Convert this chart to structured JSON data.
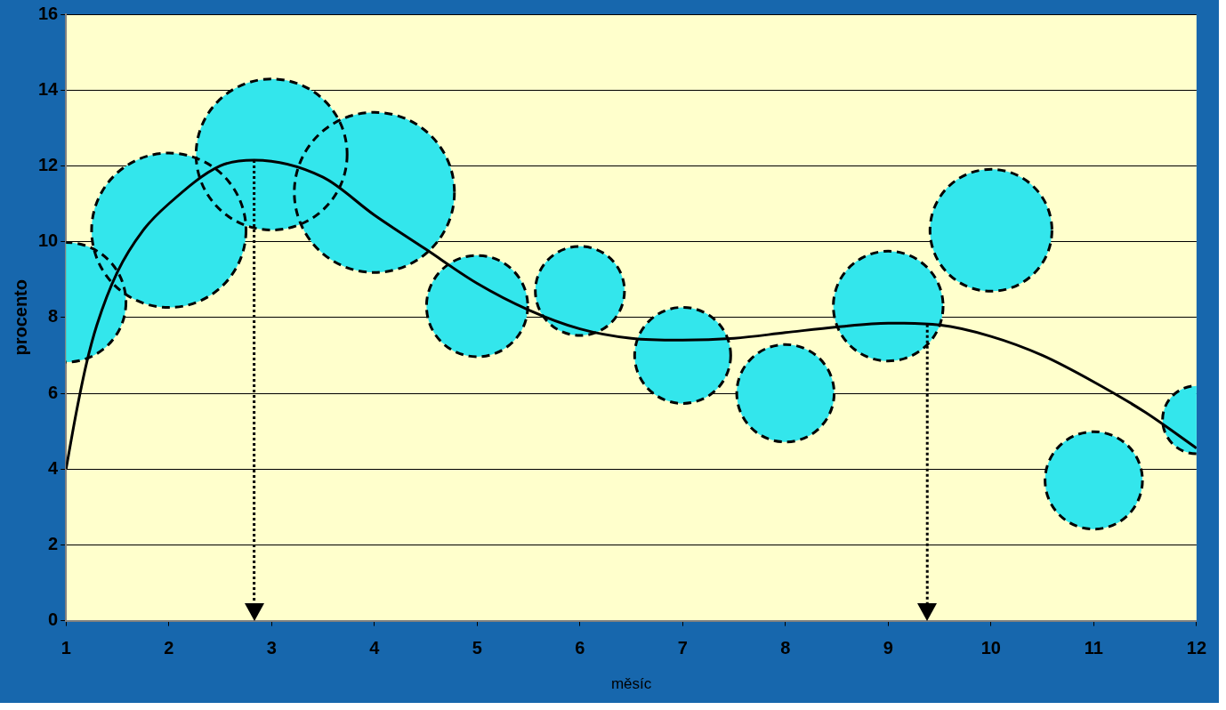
{
  "chart_data": {
    "type": "bubble",
    "xlabel": "měsíc",
    "ylabel": "procento",
    "x": [
      1,
      2,
      3,
      4,
      5,
      6,
      7,
      8,
      9,
      10,
      11,
      12
    ],
    "xlim": [
      1,
      12
    ],
    "xticks": [
      1,
      2,
      3,
      4,
      5,
      6,
      7,
      8,
      9,
      10,
      11,
      12
    ],
    "ylim": [
      0,
      16
    ],
    "yticks": [
      0,
      2,
      4,
      6,
      8,
      10,
      12,
      14,
      16
    ],
    "grid": "y",
    "legend": false,
    "line_style": "solid",
    "series": [
      {
        "color": "#33e6ec",
        "values": [
          8.4,
          10.3,
          12.3,
          11.3,
          8.3,
          8.7,
          7.0,
          6.0,
          8.3,
          10.3,
          3.7,
          5.3
        ],
        "sizes": [
          0.56,
          0.93,
          0.89,
          1,
          0.4,
          0.31,
          0.36,
          0.37,
          0.47,
          0.58,
          0.37,
          0.18
        ]
      },
      {
        "type": "line",
        "color": "#000000",
        "x": [
          1,
          1.1,
          1.2,
          1.3,
          1.5,
          1.75,
          2,
          2.5,
          2.83,
          3.5,
          4,
          4.5,
          5,
          5.5,
          6,
          6.5,
          7,
          7.5,
          8,
          8.5,
          9,
          9.5,
          10,
          10.5,
          11,
          11.5,
          12
        ],
        "values": [
          4.0,
          5.5,
          6.8,
          7.8,
          9.2,
          10.3,
          11.0,
          12.0,
          12.15,
          11.7,
          10.7,
          9.8,
          8.9,
          8.2,
          7.7,
          7.45,
          7.4,
          7.45,
          7.6,
          7.75,
          7.85,
          7.8,
          7.5,
          7.0,
          6.3,
          5.5,
          4.55
        ]
      }
    ],
    "ref_lines": [
      {
        "axis": "x",
        "value": 2.83,
        "line_style": "dotted",
        "color": "#000000"
      },
      {
        "axis": "x",
        "value": 9.38,
        "line_style": "dotted",
        "color": "#000000"
      }
    ]
  }
}
